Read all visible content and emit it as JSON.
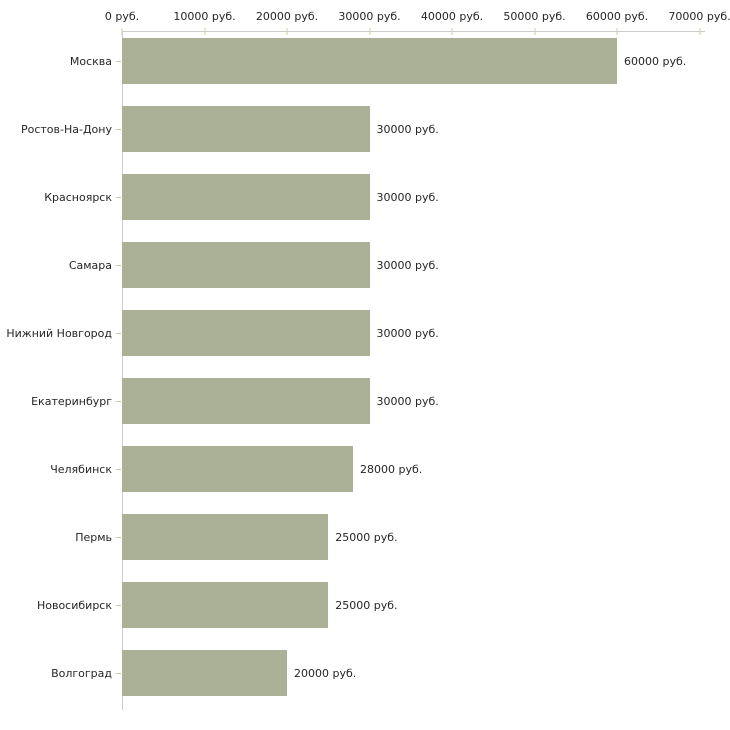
{
  "chart_data": {
    "type": "bar",
    "orientation": "horizontal",
    "title": "",
    "unit": "руб.",
    "categories": [
      "Москва",
      "Ростов-На-Дону",
      "Красноярск",
      "Самара",
      "Нижний Новгород",
      "Екатеринбург",
      "Челябинск",
      "Пермь",
      "Новосибирск",
      "Волгоград"
    ],
    "values": [
      60000,
      30000,
      30000,
      30000,
      30000,
      30000,
      28000,
      25000,
      25000,
      20000
    ],
    "value_labels": [
      "60000 руб.",
      "30000 руб.",
      "30000 руб.",
      "30000 руб.",
      "30000 руб.",
      "30000 руб.",
      "28000 руб.",
      "25000 руб.",
      "25000 руб.",
      "20000 руб."
    ],
    "x_ticks": [
      0,
      10000,
      20000,
      30000,
      40000,
      50000,
      60000,
      70000
    ],
    "x_tick_labels": [
      "0 руб.",
      "10000 руб.",
      "20000 руб.",
      "30000 руб.",
      "40000 руб.",
      "50000 руб.",
      "60000 руб.",
      "70000 руб."
    ],
    "xlim": [
      0,
      70000
    ],
    "grid": false,
    "legend": false,
    "axis_position": "top",
    "colors": {
      "bar": "#aab197",
      "axis_line": "#cccccc",
      "tick_mark": "#cbcba2",
      "text": "#262626",
      "background": "#ffffff"
    }
  }
}
